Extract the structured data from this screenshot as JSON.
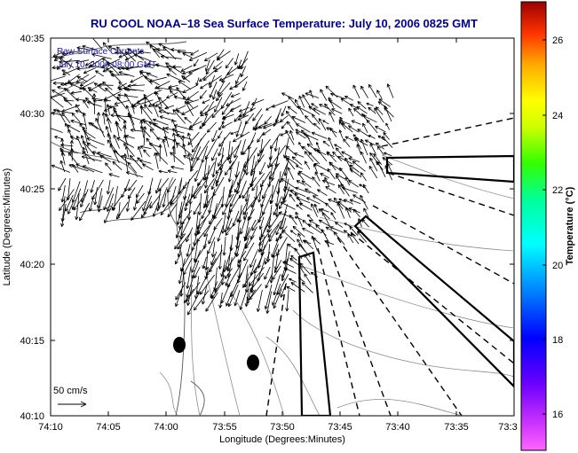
{
  "title": "RU COOL  NOAA–18  Sea Surface Temperature:  July 10, 2006 0825 GMT",
  "legend": {
    "line1": "Raw Surface Currents",
    "line2": "July 10, 2006 08:00 GMT"
  },
  "scale_label": "50 cm/s",
  "xaxis": {
    "label": "Longitude (Degrees:Minutes)",
    "ticks": [
      "74:10",
      "74:05",
      "74:00",
      "73:55",
      "73:50",
      "73:45",
      "73:40",
      "73:35",
      "73:3"
    ]
  },
  "yaxis": {
    "label": "Latitude (Degrees:Minutes)",
    "ticks": [
      "40:35",
      "40:30",
      "40:25",
      "40:20",
      "40:15",
      "40:10"
    ]
  },
  "colorbar": {
    "label": "Temperature (°C)",
    "ticks": [
      "26",
      "24",
      "22",
      "20",
      "18",
      "16"
    ]
  },
  "colors": {
    "title": "#00008b",
    "legend_text": "#1a1aa6",
    "vectors": "#000000",
    "contours": "#8c8c8c"
  }
}
